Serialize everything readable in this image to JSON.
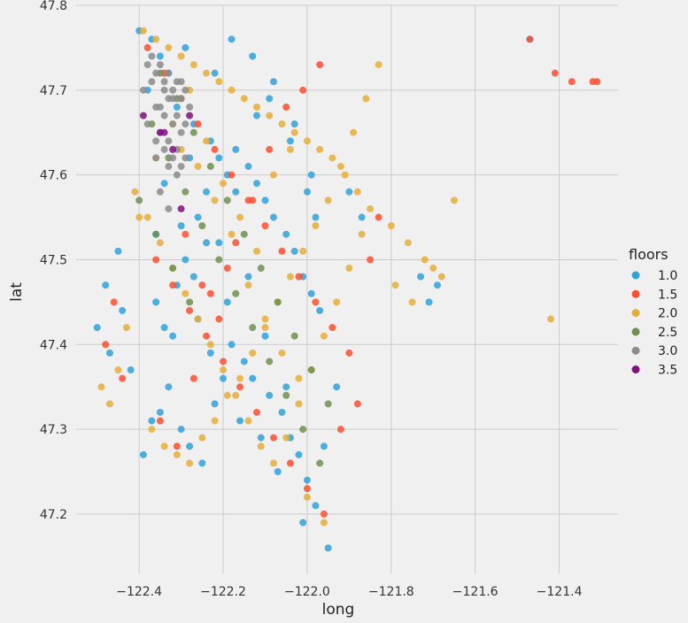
{
  "chart_data": {
    "type": "scatter",
    "title": "",
    "xlabel": "long",
    "ylabel": "lat",
    "xlim": [
      -122.55,
      -121.26
    ],
    "ylim": [
      47.13,
      47.8
    ],
    "xticks": [
      -122.4,
      -122.2,
      -122.0,
      -121.8,
      -121.6,
      -121.4
    ],
    "xtick_labels": [
      "−122.4",
      "−122.2",
      "−122.0",
      "−121.8",
      "−121.6",
      "−121.4"
    ],
    "yticks": [
      47.2,
      47.3,
      47.4,
      47.5,
      47.6,
      47.7,
      47.8
    ],
    "ytick_labels": [
      "47.2",
      "47.3",
      "47.4",
      "47.5",
      "47.6",
      "47.7",
      "47.8"
    ],
    "grid": true,
    "legend": {
      "title": "floors",
      "placement": "right"
    },
    "series": [
      {
        "name": "1.0",
        "color": "#30a2da",
        "x": [
          -122.4,
          -122.37,
          -122.35,
          -122.33,
          -122.38,
          -122.29,
          -122.31,
          -122.27,
          -122.23,
          -122.21,
          -122.19,
          -122.17,
          -122.14,
          -122.12,
          -122.1,
          -122.08,
          -122.05,
          -122.03,
          -122.01,
          -121.99,
          -121.97,
          -122.26,
          -122.24,
          -122.29,
          -122.31,
          -122.36,
          -122.34,
          -122.18,
          -122.15,
          -122.13,
          -122.09,
          -122.06,
          -122.04,
          -122.02,
          -122.0,
          -121.98,
          -122.45,
          -122.48,
          -122.5,
          -122.47,
          -122.44,
          -122.42,
          -122.33,
          -122.35,
          -122.3,
          -122.28,
          -122.25,
          -122.22,
          -122.2,
          -122.16,
          -122.11,
          -122.07,
          -121.96,
          -121.93,
          -121.9,
          -121.87,
          -121.73,
          -121.71,
          -121.69,
          -121.47,
          -122.32,
          -122.37,
          -122.39,
          -122.26,
          -122.23,
          -122.19,
          -122.14,
          -122.1,
          -122.05,
          -122.01,
          -121.95,
          -122.28,
          -122.24,
          -122.21,
          -122.17,
          -122.12,
          -122.08,
          -122.03,
          -121.99,
          -122.34,
          -122.3,
          -122.27,
          -122.22,
          -122.18,
          -122.13,
          -122.09,
          -122.04,
          -122.0,
          -121.98,
          -122.36
        ],
        "y": [
          47.77,
          47.76,
          47.74,
          47.72,
          47.7,
          47.75,
          47.68,
          47.66,
          47.64,
          47.62,
          47.6,
          47.58,
          47.61,
          47.59,
          47.57,
          47.55,
          47.53,
          47.51,
          47.48,
          47.46,
          47.44,
          47.55,
          47.52,
          47.5,
          47.47,
          47.45,
          47.42,
          47.4,
          47.38,
          47.36,
          47.34,
          47.32,
          47.29,
          47.27,
          47.24,
          47.21,
          47.51,
          47.47,
          47.42,
          47.39,
          47.44,
          47.37,
          47.35,
          47.32,
          47.3,
          47.28,
          47.26,
          47.33,
          47.36,
          47.31,
          47.29,
          47.25,
          47.28,
          47.35,
          47.58,
          47.55,
          47.48,
          47.45,
          47.47,
          47.76,
          47.41,
          47.31,
          47.27,
          47.43,
          47.39,
          47.45,
          47.48,
          47.41,
          47.35,
          47.19,
          47.16,
          47.62,
          47.58,
          47.52,
          47.63,
          47.67,
          47.71,
          47.66,
          47.6,
          47.59,
          47.54,
          47.48,
          47.72,
          47.76,
          47.74,
          47.69,
          47.64,
          47.58,
          47.55,
          47.53
        ]
      },
      {
        "name": "1.5",
        "color": "#fc4f30",
        "x": [
          -122.38,
          -122.34,
          -122.3,
          -122.26,
          -122.22,
          -122.18,
          -122.14,
          -122.1,
          -122.06,
          -122.02,
          -121.98,
          -121.94,
          -121.9,
          -122.46,
          -122.48,
          -122.44,
          -122.36,
          -122.32,
          -122.28,
          -122.24,
          -122.2,
          -122.16,
          -122.12,
          -122.08,
          -122.04,
          -122.0,
          -121.96,
          -121.92,
          -121.88,
          -121.85,
          -121.83,
          -121.41,
          -121.37,
          -121.32,
          -121.31,
          -121.47,
          -122.29,
          -122.25,
          -122.21,
          -122.17,
          -122.13,
          -122.09,
          -122.05,
          -122.01,
          -121.97,
          -122.35,
          -122.31,
          -122.27,
          -122.23,
          -122.19
        ],
        "y": [
          47.75,
          47.72,
          47.69,
          47.66,
          47.63,
          47.6,
          47.57,
          47.54,
          47.51,
          47.48,
          47.45,
          47.42,
          47.39,
          47.45,
          47.4,
          47.36,
          47.5,
          47.47,
          47.44,
          47.41,
          47.38,
          47.35,
          47.32,
          47.29,
          47.26,
          47.23,
          47.2,
          47.3,
          47.33,
          47.5,
          47.55,
          47.72,
          47.71,
          47.71,
          47.71,
          47.76,
          47.53,
          47.47,
          47.43,
          47.52,
          47.57,
          47.63,
          47.68,
          47.7,
          47.73,
          47.31,
          47.28,
          47.36,
          47.46,
          47.49
        ]
      },
      {
        "name": "2.0",
        "color": "#e5ae38",
        "x": [
          -122.39,
          -122.36,
          -122.33,
          -122.3,
          -122.27,
          -122.24,
          -122.21,
          -122.18,
          -122.15,
          -122.12,
          -122.09,
          -122.06,
          -122.03,
          -122.0,
          -121.97,
          -121.94,
          -121.91,
          -121.88,
          -121.85,
          -121.8,
          -121.76,
          -121.72,
          -121.68,
          -121.65,
          -121.42,
          -122.41,
          -122.38,
          -122.35,
          -122.32,
          -122.29,
          -122.26,
          -122.23,
          -122.2,
          -122.17,
          -122.14,
          -122.11,
          -122.08,
          -122.05,
          -122.02,
          -121.99,
          -121.96,
          -121.93,
          -121.9,
          -121.87,
          -122.49,
          -122.47,
          -122.45,
          -122.43,
          -122.37,
          -122.34,
          -122.31,
          -122.28,
          -122.25,
          -122.22,
          -122.19,
          -122.16,
          -122.13,
          -122.1,
          -122.07,
          -122.04,
          -122.01,
          -121.98,
          -121.95,
          -121.92,
          -121.89,
          -121.86,
          -121.83,
          -121.79,
          -121.75,
          -121.7,
          -122.4,
          -122.36,
          -122.32,
          -122.28,
          -122.24,
          -122.2,
          -122.16,
          -122.12,
          -122.08,
          -122.04,
          -122.0,
          -121.96,
          -122.3,
          -122.26,
          -122.22,
          -122.18,
          -122.14,
          -122.1,
          -122.06,
          -122.02
        ],
        "y": [
          47.77,
          47.76,
          47.75,
          47.74,
          47.73,
          47.72,
          47.71,
          47.7,
          47.69,
          47.68,
          47.67,
          47.66,
          47.65,
          47.64,
          47.63,
          47.62,
          47.6,
          47.58,
          47.56,
          47.54,
          47.52,
          47.5,
          47.48,
          47.57,
          47.43,
          47.58,
          47.55,
          47.52,
          47.49,
          47.46,
          47.43,
          47.4,
          47.37,
          47.34,
          47.31,
          47.28,
          47.26,
          47.29,
          47.33,
          47.37,
          47.41,
          47.45,
          47.49,
          47.53,
          47.35,
          47.33,
          47.37,
          47.42,
          47.3,
          47.28,
          47.27,
          47.26,
          47.29,
          47.31,
          47.34,
          47.36,
          47.39,
          47.42,
          47.45,
          47.48,
          47.51,
          47.54,
          47.57,
          47.61,
          47.65,
          47.69,
          47.73,
          47.47,
          47.45,
          47.49,
          47.55,
          47.62,
          47.66,
          47.7,
          47.64,
          47.59,
          47.55,
          47.51,
          47.6,
          47.63,
          47.22,
          47.19,
          47.63,
          47.61,
          47.57,
          47.53,
          47.47,
          47.43,
          47.39,
          47.36
        ]
      },
      {
        "name": "2.5",
        "color": "#6d904f",
        "x": [
          -122.37,
          -122.33,
          -122.29,
          -122.25,
          -122.21,
          -122.17,
          -122.13,
          -122.09,
          -122.05,
          -122.01,
          -121.97,
          -122.35,
          -122.31,
          -122.27,
          -122.23,
          -122.19,
          -122.15,
          -122.11,
          -122.07,
          -122.03,
          -121.99,
          -121.95,
          -122.4,
          -122.36,
          -122.32,
          -122.28
        ],
        "y": [
          47.66,
          47.62,
          47.58,
          47.54,
          47.5,
          47.46,
          47.42,
          47.38,
          47.34,
          47.3,
          47.26,
          47.72,
          47.69,
          47.65,
          47.61,
          47.57,
          47.53,
          47.49,
          47.45,
          47.41,
          47.37,
          47.33,
          47.57,
          47.53,
          47.49,
          47.45
        ]
      },
      {
        "name": "3.0",
        "color": "#8b8b8b",
        "x": [
          -122.38,
          -122.36,
          -122.34,
          -122.32,
          -122.3,
          -122.28,
          -122.37,
          -122.35,
          -122.33,
          -122.31,
          -122.29,
          -122.39,
          -122.36,
          -122.34,
          -122.32,
          -122.3,
          -122.38,
          -122.35,
          -122.33,
          -122.31,
          -122.29,
          -122.36,
          -122.34,
          -122.32,
          -122.3,
          -122.35,
          -122.33,
          -122.31,
          -122.37,
          -122.34,
          -122.32,
          -122.3,
          -122.36,
          -122.33,
          -122.31,
          -122.29,
          -122.35,
          -122.33
        ],
        "y": [
          47.73,
          47.72,
          47.71,
          47.7,
          47.69,
          47.68,
          47.74,
          47.73,
          47.72,
          47.71,
          47.7,
          47.7,
          47.68,
          47.67,
          47.66,
          47.65,
          47.66,
          47.65,
          47.64,
          47.63,
          47.62,
          47.64,
          47.63,
          47.62,
          47.61,
          47.68,
          47.69,
          47.67,
          47.71,
          47.7,
          47.69,
          47.71,
          47.62,
          47.61,
          47.6,
          47.66,
          47.58,
          47.56
        ]
      },
      {
        "name": "3.5",
        "color": "#810f7c",
        "x": [
          -122.39,
          -122.35,
          -122.34,
          -122.32,
          -122.3,
          -122.28
        ],
        "y": [
          47.67,
          47.65,
          47.65,
          47.63,
          47.56,
          47.67
        ]
      }
    ]
  }
}
